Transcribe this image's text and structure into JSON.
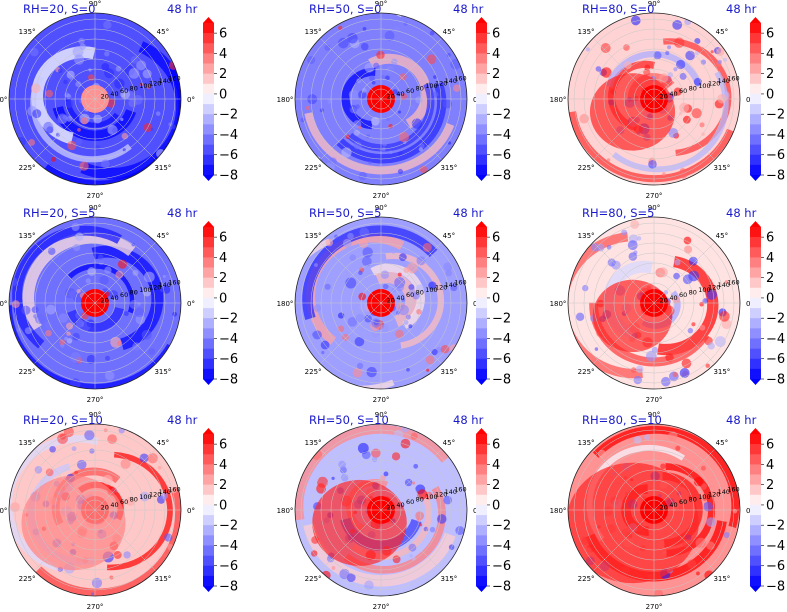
{
  "chart_data": {
    "type": "heatmap",
    "projection": "polar",
    "angle_ticks": [
      "0°",
      "45°",
      "90°",
      "135°",
      "180°",
      "225°",
      "270°",
      "315°"
    ],
    "radial_ticks": [
      "20",
      "40",
      "60",
      "80",
      "100",
      "120",
      "140",
      "160"
    ],
    "colorbar": {
      "ticks": [
        "6",
        "4",
        "2",
        "0",
        "−2",
        "−4",
        "−6",
        "−8"
      ],
      "range": [
        -8,
        7
      ],
      "extend": "both",
      "colormap": "bwr",
      "colors": {
        "low": "#0000ff",
        "mid": "#ffffff",
        "high": "#ff0000"
      }
    },
    "grid": true,
    "panels": [
      {
        "title": "RH=20, S=0",
        "time": "48 hr",
        "core_value": 3,
        "ambient_value": -5.5,
        "warm_fraction": 0.12
      },
      {
        "title": "RH=50, S=0",
        "time": "48 hr",
        "core_value": 7,
        "ambient_value": -4,
        "warm_fraction": 0.14
      },
      {
        "title": "RH=80, S=0",
        "time": "48 hr",
        "core_value": 7,
        "ambient_value": 1.2,
        "warm_fraction": 0.45
      },
      {
        "title": "RH=20, S=5",
        "time": "48 hr",
        "core_value": 7,
        "ambient_value": -4.5,
        "warm_fraction": 0.2
      },
      {
        "title": "RH=50, S=5",
        "time": "48 hr",
        "core_value": 7,
        "ambient_value": -3,
        "warm_fraction": 0.22
      },
      {
        "title": "RH=80, S=5",
        "time": "48 hr",
        "core_value": 7,
        "ambient_value": 0.8,
        "warm_fraction": 0.42
      },
      {
        "title": "RH=20, S=10",
        "time": "48 hr",
        "core_value": 4,
        "ambient_value": 1.5,
        "warm_fraction": 0.55
      },
      {
        "title": "RH=50, S=10",
        "time": "48 hr",
        "core_value": 7,
        "ambient_value": -2,
        "warm_fraction": 0.5
      },
      {
        "title": "RH=80, S=10",
        "time": "48 hr",
        "core_value": 7,
        "ambient_value": 3,
        "warm_fraction": 0.7
      }
    ]
  }
}
